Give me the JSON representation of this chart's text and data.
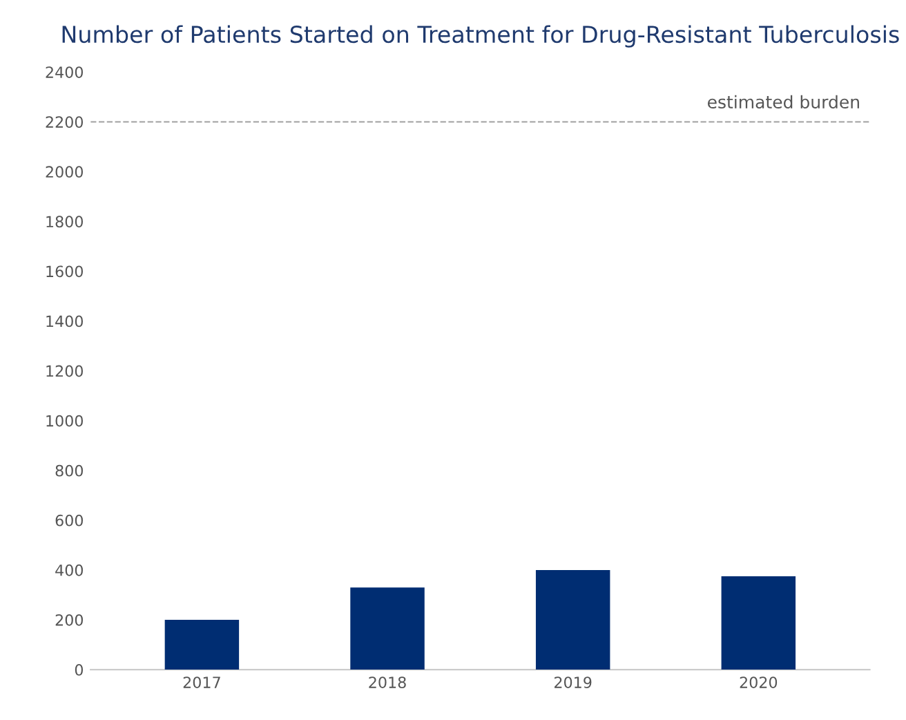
{
  "chart_data": {
    "type": "bar",
    "title": "Number of Patients Started on Treatment for Drug-Resistant Tuberculosis",
    "categories": [
      "2017",
      "2018",
      "2019",
      "2020"
    ],
    "values": [
      200,
      330,
      400,
      375
    ],
    "color": "#002d72",
    "ylim": [
      0,
      2400
    ],
    "yticks": [
      0,
      200,
      400,
      600,
      800,
      1000,
      1200,
      1400,
      1600,
      1800,
      2000,
      2200,
      2400
    ],
    "ref_lines": [
      {
        "axis": "y",
        "value": 2200,
        "label": "estimated burden",
        "color": "#aaaaaa",
        "line_style": "dashed"
      }
    ],
    "grid": false
  }
}
